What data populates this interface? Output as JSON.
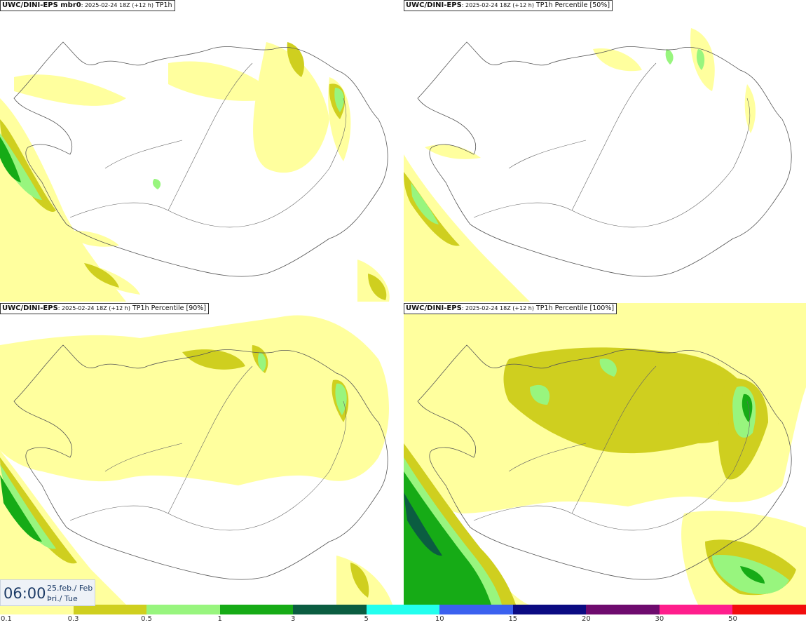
{
  "panels": [
    {
      "title_bold": "UWC/DINI-EPS mbr0",
      "title_meta": ": 2025-02-24 18Z (+12 h)",
      "title_var": " TP1h",
      "coverage": "low"
    },
    {
      "title_bold": "UWC/DINI-EPS",
      "title_meta": ": 2025-02-24 18Z (+12 h)",
      "title_var": " TP1h Percentile [50%]",
      "coverage": "low"
    },
    {
      "title_bold": "UWC/DINI-EPS",
      "title_meta": ": 2025-02-24 18Z (+12 h)",
      "title_var": " TP1h Percentile [90%]",
      "coverage": "high"
    },
    {
      "title_bold": "UWC/DINI-EPS",
      "title_meta": ": 2025-02-24 18Z (+12 h)",
      "title_var": " TP1h Percentile [100%]",
      "coverage": "max"
    }
  ],
  "valid_time": {
    "time": "06:00",
    "date_line1": "25.feb./ Feb",
    "date_line2": "Þri./ Tue"
  },
  "color_scale": {
    "colors": [
      "#ffff9e",
      "#cfcf1f",
      "#98f57e",
      "#16ab16",
      "#0b5d41",
      "#23ffee",
      "#3b61ef",
      "#0b0b82",
      "#6e0b6e",
      "#ff1e8c",
      "#f20d0d"
    ],
    "labels": [
      "0.1",
      "0.3",
      "0.5",
      "1",
      "3",
      "5",
      "10",
      "15",
      "20",
      "30",
      "50"
    ]
  }
}
